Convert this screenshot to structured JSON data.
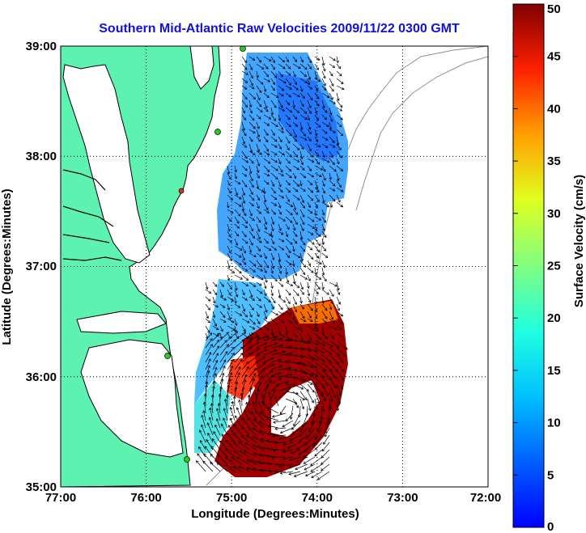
{
  "title": "Southern Mid-Atlantic Raw Velocities 2009/11/22 0300 GMT",
  "x_axis": {
    "label": "Longitude (Degrees:Minutes)",
    "ticks": [
      "77:00",
      "76:00",
      "75:00",
      "74:00",
      "73:00",
      "72:00"
    ]
  },
  "y_axis": {
    "label": "Latitude (Degrees:Minutes)",
    "ticks": [
      "39:00",
      "38:00",
      "37:00",
      "36:00",
      "35:00"
    ]
  },
  "colorbar": {
    "label": "Surface Velocity (cm/s)",
    "ticks": [
      "0",
      "5",
      "10",
      "15",
      "20",
      "25",
      "30",
      "35",
      "40",
      "45",
      "50"
    ],
    "min": 0,
    "max": 50,
    "colormap": "jet"
  },
  "map": {
    "lon_range": [
      -77,
      -72
    ],
    "lat_range": [
      35,
      39
    ],
    "grid": true,
    "land_color": "#5ef2b0",
    "water_color": "#ffffff",
    "coast_color": "#000000",
    "bathymetry_color": "#909090",
    "station_color": "#22cc22",
    "station_offline_color": "#e03020"
  }
}
